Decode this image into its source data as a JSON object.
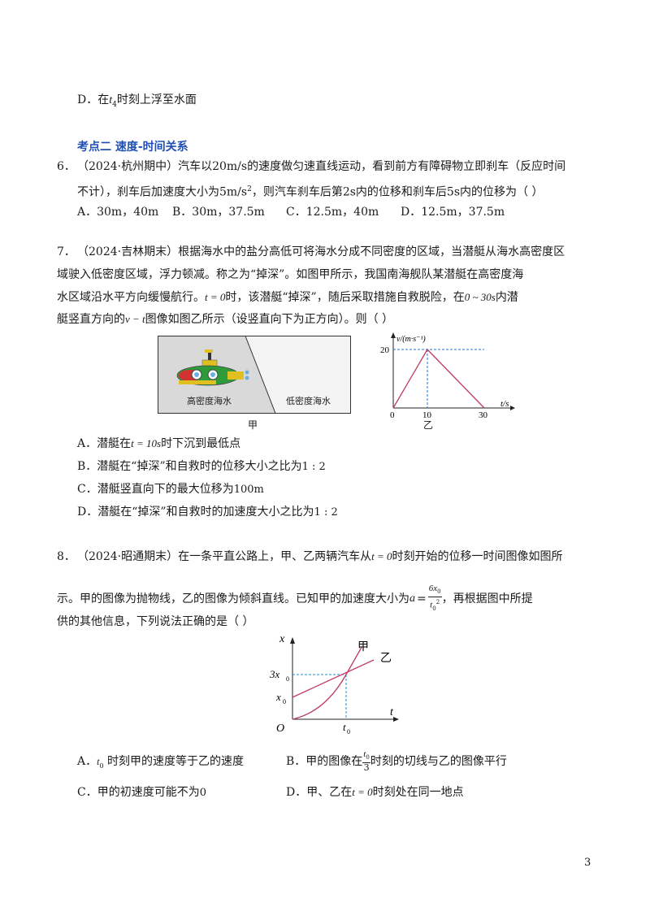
{
  "prev": {
    "optD_label": "D．",
    "optD_pre": "在",
    "optD_var": "t",
    "optD_sub": "4",
    "optD_post": "时刻上浮至水面"
  },
  "section": {
    "title": "考点二  速度-时间关系"
  },
  "q6": {
    "num": "6．",
    "line1": "（2024·杭州期中）汽车以20m/s的速度做匀速直线运动，看到前方有障碍物立即刹车（反应时间",
    "line2_a": "不计），刹车后加速度大小为5m/s",
    "line2_sup": "2",
    "line2_b": "，则汽车刹车后第2s内的位移和刹车后5s内的位移为（    ）",
    "options": [
      "A．30m，40m",
      "B．30m，37.5m",
      "C．12.5m，40m",
      "D．12.5m，37.5m"
    ]
  },
  "q7": {
    "num": "7．",
    "line1": "（2024·吉林期末）根据海水中的盐分高低可将海水分成不同密度的区域，当潜艇从海水高密度区",
    "line2": "域驶入低密度区域，浮力顿减。称之为“掉深”。如图甲所示，我国南海舰队某潜艇在高密度海",
    "line3_a": "水区域沿水平方向缓慢航行。",
    "line3_b": "t = 0",
    "line3_c": "时，该潜艇“掉深”，随后采取措施自救脱险，在",
    "line3_d": "0 ~ 30s",
    "line3_e": "内潜",
    "line4_a": "艇竖直方向的",
    "line4_b": "v − t",
    "line4_c": "图像如图乙所示（设竖直向下为正方向）。则（        ）",
    "fig_jia": {
      "high": "高密度海水",
      "low": "低密度海水",
      "caption": "甲"
    },
    "fig_yi": {
      "ylabel": "v/(m·s⁻¹)",
      "xlabel": "t/s",
      "y20": "20",
      "x0": "0",
      "x10": "10",
      "x30": "30",
      "caption": "乙"
    },
    "options": [
      {
        "a": "A．潜艇在",
        "m": "t = 10s",
        "b": "时下沉到最低点"
      },
      {
        "a": "B．潜艇在“掉深”和自救时的位移大小之比为",
        "m": "1 : 2",
        "b": ""
      },
      {
        "a": "C．潜艇竖直向下的最大位移为",
        "m": "100m",
        "b": ""
      },
      {
        "a": "D．潜艇在“掉深”和自救时的加速度大小之比为",
        "m": "1 : 2",
        "b": ""
      }
    ]
  },
  "q8": {
    "num": "8．",
    "line1_a": "（2024·昭通期末）在一条平直公路上，甲、乙两辆汽车从",
    "line1_b": "t = 0",
    "line1_c": "时刻开始的位移一时间图像如图所",
    "line2_a": "示。甲的图像为抛物线，乙的图像为倾斜直线。已知甲的加速度大小为",
    "line2_a_var": "a",
    "line2_num": "6x",
    "line2_num_sub": "0",
    "line2_den": "t",
    "line2_den_sub": "0",
    "line2_den_sup": "2",
    "line2_b": "，再根据图中所提",
    "line3": "供的其他信息，下列说法正确的是（        ）",
    "fig": {
      "x": "x",
      "t": "t",
      "O": "O",
      "x3": "3x",
      "x0": "x",
      "sub0": "0",
      "t0": "t",
      "jia": "甲",
      "yi": "乙"
    },
    "optA_a": "A．",
    "optA_var": "t",
    "optA_sub": "0",
    "optA_b": " 时刻甲的速度等于乙的速度",
    "optB_a": "B．甲的图像在",
    "optB_num": "t",
    "optB_num_sub": "0",
    "optB_den": "3",
    "optB_b": "时刻的切线与乙的图像平行",
    "optC_a": "C．甲的初速度可能不为",
    "optC_m": "0",
    "optD_a": "D．甲、乙在",
    "optD_m": "t = 0",
    "optD_b": "时刻处在同一地点"
  },
  "page": {
    "number": "3"
  }
}
